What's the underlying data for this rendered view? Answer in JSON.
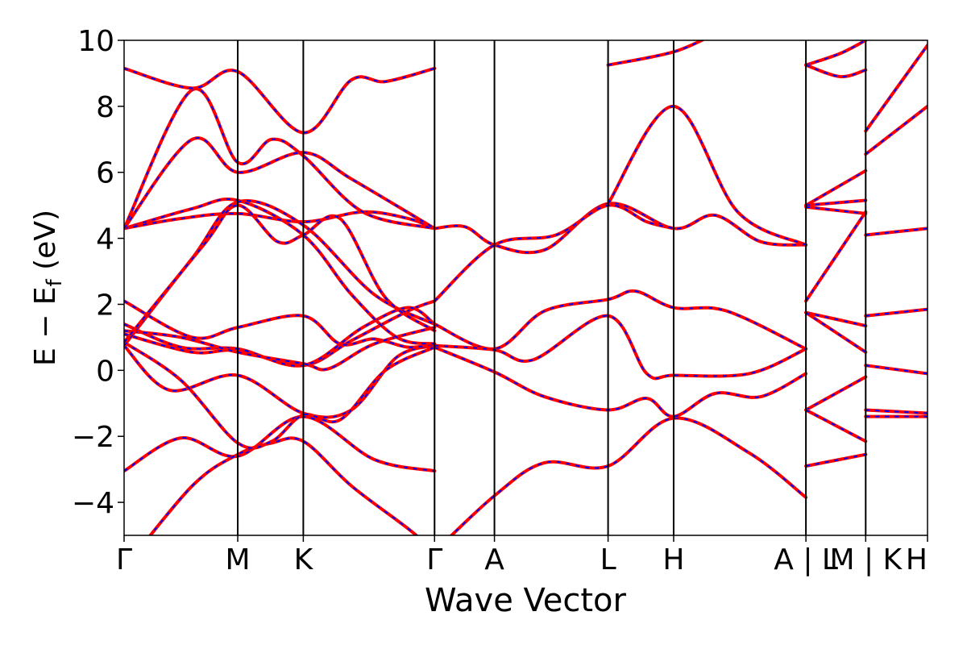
{
  "chart_data": {
    "type": "line",
    "title": "",
    "xlabel": "Wave Vector",
    "ylabel_main": "E − E",
    "ylabel_sub": "f",
    "ylabel_unit": " (eV)",
    "ylim": [
      -5,
      10
    ],
    "y_ticks": [
      {
        "value": -4,
        "label": "−4"
      },
      {
        "value": -2,
        "label": "−2"
      },
      {
        "value": 0,
        "label": "0"
      },
      {
        "value": 2,
        "label": "2"
      },
      {
        "value": 4,
        "label": "4"
      },
      {
        "value": 6,
        "label": "6"
      },
      {
        "value": 8,
        "label": "8"
      },
      {
        "value": 10,
        "label": "10"
      }
    ],
    "x_ticks": [
      "Γ",
      "M",
      "K",
      "Γ",
      "A",
      "L",
      "H",
      "A | L",
      "M | K",
      "H"
    ],
    "x_tick_values": [
      0,
      1.0,
      1.577,
      2.732,
      3.259,
      4.259,
      4.836,
      6.0,
      6.526,
      7.07
    ],
    "xlim": [
      0,
      7.07
    ],
    "grid": false,
    "legend": "none",
    "colors": {
      "primary": "#ff0000",
      "overlay": "#0000ff",
      "axis": "#000000"
    },
    "series": [
      {
        "values": [
          [
            0,
            -3.05
          ],
          [
            0.5,
            -2.05
          ],
          [
            1.0,
            -2.6
          ],
          [
            1.577,
            -1.4
          ],
          [
            2.2,
            -2.7
          ],
          [
            2.732,
            -3.05
          ]
        ]
      },
      {
        "values": [
          [
            0,
            -6.0
          ],
          [
            0.6,
            -3.5
          ],
          [
            1.0,
            -2.55
          ],
          [
            1.3,
            -2.2
          ],
          [
            1.577,
            -2.15
          ],
          [
            2.0,
            -3.5
          ],
          [
            2.5,
            -4.8
          ],
          [
            2.732,
            -5.5
          ]
        ]
      },
      {
        "values": [
          [
            2.732,
            -5.5
          ],
          [
            3.259,
            -3.8
          ],
          [
            3.7,
            -2.8
          ],
          [
            4.259,
            -2.9
          ],
          [
            4.836,
            -1.45
          ],
          [
            5.5,
            -2.5
          ],
          [
            6.0,
            -3.85
          ]
        ]
      },
      {
        "values": [
          [
            0,
            0.75
          ],
          [
            0.4,
            -0.6
          ],
          [
            1.0,
            -0.15
          ],
          [
            1.577,
            -1.3
          ],
          [
            2.0,
            -1.2
          ],
          [
            2.4,
            0.4
          ],
          [
            2.732,
            0.75
          ]
        ]
      },
      {
        "values": [
          [
            0,
            0.85
          ],
          [
            0.5,
            -0.3
          ],
          [
            1.0,
            -2.2
          ],
          [
            1.3,
            -2.15
          ],
          [
            1.577,
            -1.35
          ],
          [
            1.9,
            -1.5
          ],
          [
            2.3,
            0.0
          ],
          [
            2.732,
            0.7
          ]
        ]
      },
      {
        "values": [
          [
            2.732,
            0.7
          ],
          [
            3.259,
            -0.05
          ],
          [
            3.7,
            -0.8
          ],
          [
            4.259,
            -1.2
          ],
          [
            4.6,
            -0.85
          ],
          [
            4.836,
            -1.4
          ],
          [
            5.2,
            -0.7
          ],
          [
            5.6,
            -0.8
          ],
          [
            6.0,
            -0.1
          ]
        ]
      },
      {
        "values": [
          [
            0,
            1.1
          ],
          [
            0.6,
            0.55
          ],
          [
            1.0,
            0.6
          ],
          [
            1.577,
            0.15
          ],
          [
            2.0,
            0.9
          ],
          [
            2.5,
            1.8
          ],
          [
            2.732,
            2.1
          ]
        ]
      },
      {
        "values": [
          [
            0,
            1.4
          ],
          [
            0.5,
            0.7
          ],
          [
            1.0,
            0.65
          ],
          [
            1.577,
            0.15
          ],
          [
            2.1,
            1.3
          ],
          [
            2.5,
            1.9
          ],
          [
            2.732,
            1.4
          ]
        ]
      },
      {
        "values": [
          [
            0,
            2.1
          ],
          [
            0.6,
            1.0
          ],
          [
            1.0,
            1.3
          ],
          [
            1.577,
            1.65
          ],
          [
            1.9,
            0.8
          ],
          [
            2.2,
            0.95
          ],
          [
            2.5,
            0.7
          ],
          [
            2.732,
            0.8
          ]
        ]
      },
      {
        "values": [
          [
            0,
            1.2
          ],
          [
            0.5,
            1.0
          ],
          [
            1.0,
            0.55
          ],
          [
            1.577,
            0.2
          ],
          [
            1.8,
            0.05
          ],
          [
            2.2,
            0.8
          ],
          [
            2.732,
            1.3
          ]
        ]
      },
      {
        "values": [
          [
            2.732,
            1.4
          ],
          [
            3.259,
            0.65
          ],
          [
            3.7,
            1.8
          ],
          [
            4.259,
            2.15
          ],
          [
            4.5,
            2.4
          ],
          [
            4.836,
            1.9
          ],
          [
            5.3,
            1.8
          ],
          [
            6.0,
            0.65
          ]
        ]
      },
      {
        "values": [
          [
            2.732,
            0.75
          ],
          [
            3.259,
            0.62
          ],
          [
            3.6,
            0.32
          ],
          [
            4.259,
            1.65
          ],
          [
            4.6,
            -0.1
          ],
          [
            4.836,
            -0.15
          ],
          [
            5.5,
            -0.1
          ],
          [
            6.0,
            0.65
          ]
        ]
      },
      {
        "values": [
          [
            0,
            4.3
          ],
          [
            0.6,
            4.9
          ],
          [
            1.0,
            5.15
          ],
          [
            1.577,
            4.1
          ],
          [
            2.0,
            2.3
          ],
          [
            2.4,
            1.0
          ],
          [
            2.732,
            0.8
          ]
        ]
      },
      {
        "values": [
          [
            0,
            4.3
          ],
          [
            0.5,
            4.6
          ],
          [
            1.0,
            4.75
          ],
          [
            1.577,
            4.5
          ],
          [
            2.1,
            4.8
          ],
          [
            2.5,
            4.6
          ],
          [
            2.732,
            4.3
          ]
        ]
      },
      {
        "values": [
          [
            0,
            0.75
          ],
          [
            0.6,
            3.4
          ],
          [
            1.0,
            5.1
          ],
          [
            1.577,
            4.4
          ],
          [
            2.2,
            2.3
          ],
          [
            2.732,
            1.4
          ]
        ]
      },
      {
        "values": [
          [
            0,
            0.85
          ],
          [
            0.7,
            3.8
          ],
          [
            1.0,
            5.0
          ],
          [
            1.35,
            3.9
          ],
          [
            1.577,
            4.1
          ],
          [
            1.9,
            4.6
          ],
          [
            2.3,
            2.2
          ],
          [
            2.732,
            1.2
          ]
        ]
      },
      {
        "values": [
          [
            2.732,
            4.3
          ],
          [
            3.0,
            4.35
          ],
          [
            3.259,
            3.8
          ],
          [
            3.7,
            3.65
          ],
          [
            4.259,
            5.05
          ],
          [
            4.836,
            4.3
          ],
          [
            5.2,
            4.7
          ],
          [
            5.6,
            3.9
          ],
          [
            6.0,
            3.8
          ]
        ]
      },
      {
        "values": [
          [
            2.732,
            2.1
          ],
          [
            3.259,
            3.8
          ],
          [
            3.8,
            4.1
          ],
          [
            4.259,
            5.0
          ],
          [
            4.6,
            4.5
          ],
          [
            4.836,
            4.3
          ]
        ]
      },
      {
        "values": [
          [
            0,
            4.3
          ],
          [
            0.6,
            8.5
          ],
          [
            1.0,
            6.3
          ],
          [
            1.3,
            7.0
          ],
          [
            1.577,
            6.5
          ],
          [
            2.1,
            4.8
          ],
          [
            2.732,
            4.3
          ]
        ]
      },
      {
        "values": [
          [
            0,
            4.3
          ],
          [
            0.6,
            7.0
          ],
          [
            1.0,
            6.0
          ],
          [
            1.577,
            6.6
          ],
          [
            2.0,
            5.8
          ],
          [
            2.732,
            4.3
          ]
        ]
      },
      {
        "values": [
          [
            0,
            9.15
          ],
          [
            0.6,
            8.55
          ],
          [
            1.0,
            9.05
          ],
          [
            1.577,
            7.2
          ],
          [
            2.0,
            8.8
          ],
          [
            2.3,
            8.75
          ],
          [
            2.732,
            9.15
          ]
        ]
      },
      {
        "values": [
          [
            4.259,
            5.05
          ],
          [
            4.836,
            8.0
          ],
          [
            5.4,
            4.8
          ],
          [
            6.0,
            3.8
          ]
        ]
      },
      {
        "values": [
          [
            4.259,
            9.25
          ],
          [
            4.836,
            9.65
          ],
          [
            5.2,
            10.2
          ]
        ]
      },
      {
        "values": [
          [
            6.0,
            9.25
          ],
          [
            6.3,
            9.6
          ],
          [
            6.526,
            10.0
          ]
        ]
      },
      {
        "values": [
          [
            6.0,
            9.25
          ],
          [
            6.3,
            8.9
          ],
          [
            6.526,
            9.1
          ]
        ]
      },
      {
        "values": [
          [
            6.0,
            5.0
          ],
          [
            6.526,
            6.05
          ]
        ]
      },
      {
        "values": [
          [
            6.0,
            5.0
          ],
          [
            6.526,
            5.15
          ]
        ]
      },
      {
        "values": [
          [
            6.0,
            4.95
          ],
          [
            6.526,
            4.75
          ]
        ]
      },
      {
        "values": [
          [
            6.0,
            2.1
          ],
          [
            6.526,
            4.8
          ]
        ]
      },
      {
        "values": [
          [
            6.0,
            1.75
          ],
          [
            6.526,
            1.35
          ]
        ]
      },
      {
        "values": [
          [
            6.0,
            1.75
          ],
          [
            6.526,
            0.55
          ]
        ]
      },
      {
        "values": [
          [
            6.0,
            -1.2
          ],
          [
            6.526,
            -0.2
          ]
        ]
      },
      {
        "values": [
          [
            6.0,
            -1.2
          ],
          [
            6.526,
            -2.15
          ]
        ]
      },
      {
        "values": [
          [
            6.0,
            -2.9
          ],
          [
            6.526,
            -2.55
          ]
        ]
      },
      {
        "values": [
          [
            6.526,
            7.25
          ],
          [
            7.07,
            9.85
          ]
        ]
      },
      {
        "values": [
          [
            6.526,
            6.55
          ],
          [
            7.07,
            8.0
          ]
        ]
      },
      {
        "values": [
          [
            6.526,
            4.1
          ],
          [
            7.07,
            4.3
          ]
        ]
      },
      {
        "values": [
          [
            6.526,
            1.65
          ],
          [
            7.07,
            1.85
          ]
        ]
      },
      {
        "values": [
          [
            6.526,
            0.15
          ],
          [
            7.07,
            -0.1
          ]
        ]
      },
      {
        "values": [
          [
            6.526,
            -1.2
          ],
          [
            7.07,
            -1.3
          ]
        ]
      },
      {
        "values": [
          [
            6.526,
            -1.4
          ],
          [
            7.07,
            -1.4
          ]
        ]
      }
    ]
  }
}
